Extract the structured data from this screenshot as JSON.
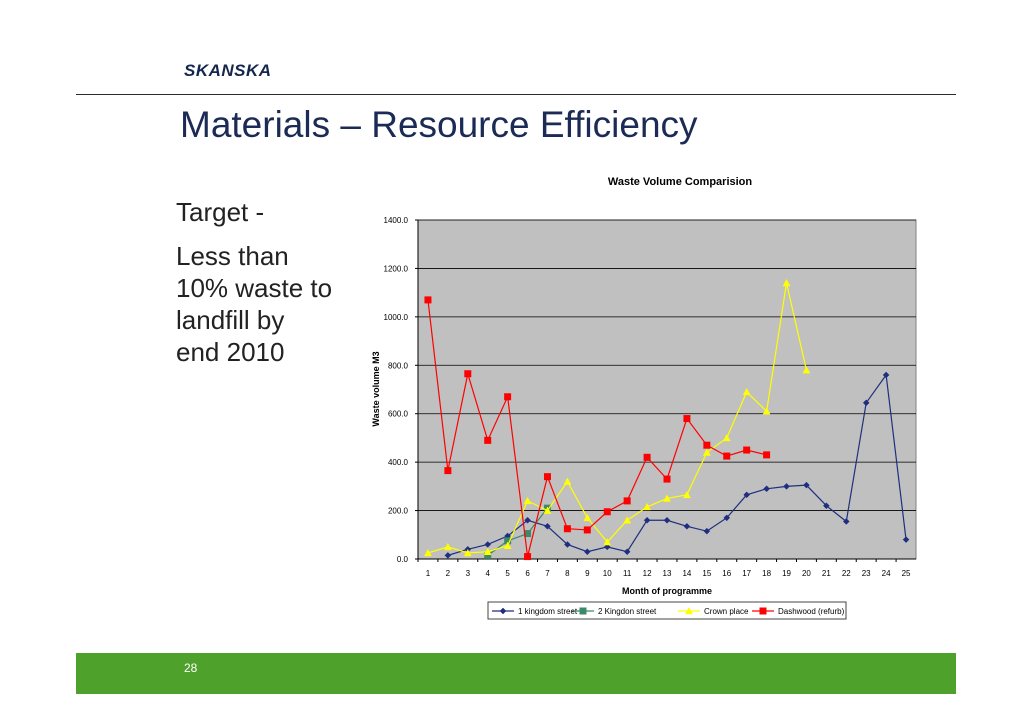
{
  "header": {
    "logo_text": "SKANSKA"
  },
  "slide": {
    "title": "Materials – Resource Efficiency",
    "target_label": "Target -",
    "target_lines": [
      "Less than",
      "10% waste to",
      "landfill by",
      "end 2010"
    ],
    "page_number": "28"
  },
  "chart_data": {
    "type": "line",
    "title": "Waste Volume Comparision",
    "xlabel": "Month of programme",
    "ylabel": "Waste volume M3",
    "ylim": [
      0,
      1400
    ],
    "ytick_labels": [
      "0.0",
      "200.0",
      "400.0",
      "600.0",
      "800.0",
      "1000.0",
      "1200.0",
      "1400.0"
    ],
    "categories": [
      "1",
      "2",
      "3",
      "4",
      "5",
      "6",
      "7",
      "8",
      "9",
      "10",
      "11",
      "12",
      "13",
      "14",
      "15",
      "16",
      "17",
      "18",
      "19",
      "20",
      "21",
      "22",
      "23",
      "24",
      "25"
    ],
    "plot_background": "#c0c0c0",
    "grid": true,
    "legend_position": "bottom",
    "series": [
      {
        "name": "1 kingdom street",
        "color": "#1f2f80",
        "marker": "diamond",
        "values": [
          null,
          15,
          40,
          60,
          95,
          160,
          135,
          60,
          30,
          50,
          30,
          160,
          160,
          135,
          115,
          170,
          265,
          290,
          300,
          305,
          220,
          155,
          645,
          760,
          80
        ]
      },
      {
        "name": "2 Kingdon street",
        "color": "#3d8a6a",
        "marker": "square",
        "values": [
          null,
          null,
          null,
          15,
          75,
          105,
          210,
          null,
          null,
          null,
          null,
          null,
          null,
          null,
          null,
          null,
          null,
          null,
          null,
          null,
          null,
          null,
          null,
          null,
          null
        ]
      },
      {
        "name": "Crown place",
        "color": "#ffff00",
        "marker": "triangle",
        "values": [
          25,
          50,
          25,
          30,
          55,
          240,
          200,
          320,
          170,
          70,
          160,
          215,
          250,
          265,
          440,
          500,
          690,
          610,
          1140,
          780,
          null,
          null,
          null,
          null,
          null
        ]
      },
      {
        "name": "Dashwood (refurb)",
        "color": "#ff0000",
        "marker": "square",
        "values": [
          1070,
          365,
          765,
          490,
          670,
          10,
          340,
          125,
          120,
          195,
          240,
          420,
          330,
          580,
          470,
          425,
          450,
          430,
          null,
          null,
          null,
          null,
          null,
          null,
          null
        ]
      }
    ]
  }
}
